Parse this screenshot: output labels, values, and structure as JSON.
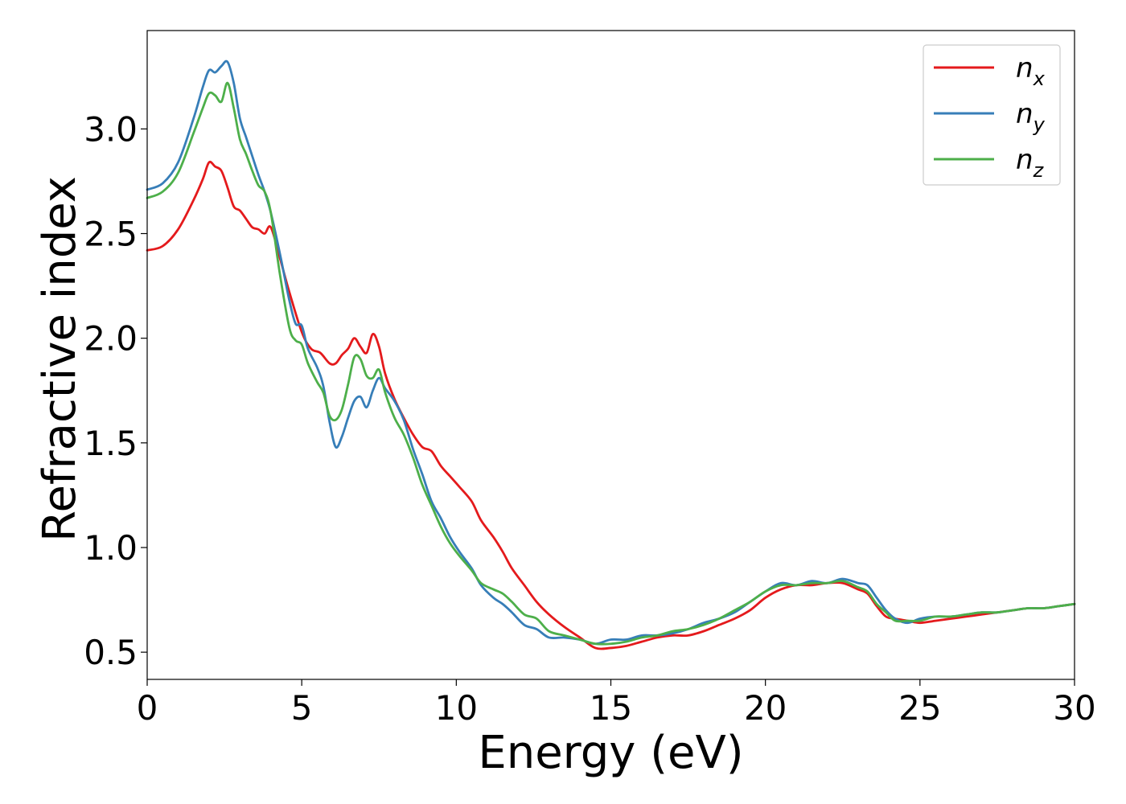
{
  "chart_data": {
    "type": "line",
    "title": "",
    "xlabel": "Energy (eV)",
    "ylabel": "Refractive index",
    "xlim": [
      0,
      30
    ],
    "ylim": [
      0.37,
      3.47
    ],
    "xticks": [
      0,
      5,
      10,
      15,
      20,
      25,
      30
    ],
    "xtick_labels": [
      "0",
      "5",
      "10",
      "15",
      "20",
      "25",
      "30"
    ],
    "yticks": [
      0.5,
      1.0,
      1.5,
      2.0,
      2.5,
      3.0
    ],
    "ytick_labels": [
      "0.5",
      "1.0",
      "1.5",
      "2.0",
      "2.5",
      "3.0"
    ],
    "grid": false,
    "legend_position": "top-right",
    "series": [
      {
        "name": "n_x",
        "label_main": "n",
        "label_sub": "x",
        "color": "#e41a1c",
        "x": [
          0,
          0.5,
          1.0,
          1.5,
          1.8,
          2.0,
          2.2,
          2.4,
          2.6,
          2.8,
          3.0,
          3.2,
          3.4,
          3.6,
          3.8,
          4.0,
          4.3,
          4.6,
          5.0,
          5.3,
          5.6,
          5.9,
          6.1,
          6.3,
          6.5,
          6.7,
          6.9,
          7.1,
          7.3,
          7.5,
          7.7,
          8.0,
          8.3,
          8.6,
          8.9,
          9.2,
          9.5,
          9.8,
          10.1,
          10.5,
          10.8,
          11.2,
          11.5,
          11.8,
          12.2,
          12.6,
          13.0,
          13.5,
          14.0,
          14.5,
          15.0,
          15.5,
          16.0,
          16.5,
          17.0,
          17.5,
          18.0,
          18.5,
          19.0,
          19.5,
          20.0,
          20.5,
          21.0,
          21.5,
          22.0,
          22.5,
          23.0,
          23.3,
          23.6,
          23.9,
          24.2,
          24.6,
          25.0,
          25.5,
          26.0,
          26.5,
          27.0,
          27.5,
          28.0,
          28.5,
          29.0,
          29.5,
          30.0
        ],
        "values": [
          2.42,
          2.44,
          2.52,
          2.66,
          2.76,
          2.84,
          2.82,
          2.8,
          2.72,
          2.63,
          2.61,
          2.57,
          2.53,
          2.52,
          2.5,
          2.53,
          2.38,
          2.22,
          2.03,
          1.95,
          1.93,
          1.88,
          1.88,
          1.92,
          1.95,
          2.0,
          1.96,
          1.93,
          2.02,
          1.96,
          1.83,
          1.71,
          1.62,
          1.54,
          1.48,
          1.46,
          1.39,
          1.34,
          1.29,
          1.22,
          1.13,
          1.05,
          0.98,
          0.9,
          0.82,
          0.74,
          0.68,
          0.62,
          0.57,
          0.52,
          0.52,
          0.53,
          0.55,
          0.57,
          0.58,
          0.58,
          0.6,
          0.63,
          0.66,
          0.7,
          0.76,
          0.8,
          0.82,
          0.82,
          0.83,
          0.83,
          0.8,
          0.78,
          0.72,
          0.67,
          0.66,
          0.65,
          0.64,
          0.65,
          0.66,
          0.67,
          0.68,
          0.69,
          0.7,
          0.71,
          0.71,
          0.72,
          0.73
        ]
      },
      {
        "name": "n_y",
        "label_main": "n",
        "label_sub": "y",
        "color": "#377eb8",
        "x": [
          0,
          0.5,
          1.0,
          1.5,
          1.8,
          2.0,
          2.2,
          2.4,
          2.6,
          2.8,
          3.0,
          3.2,
          3.4,
          3.6,
          3.8,
          4.0,
          4.3,
          4.6,
          4.8,
          5.0,
          5.2,
          5.5,
          5.7,
          5.9,
          6.1,
          6.3,
          6.5,
          6.7,
          6.9,
          7.1,
          7.3,
          7.5,
          7.7,
          8.0,
          8.3,
          8.6,
          8.9,
          9.2,
          9.5,
          9.8,
          10.1,
          10.5,
          10.8,
          11.2,
          11.5,
          11.8,
          12.2,
          12.6,
          13.0,
          13.5,
          14.0,
          14.5,
          15.0,
          15.5,
          16.0,
          16.5,
          17.0,
          17.5,
          18.0,
          18.5,
          19.0,
          19.5,
          20.0,
          20.5,
          21.0,
          21.5,
          22.0,
          22.5,
          23.0,
          23.3,
          23.6,
          23.9,
          24.2,
          24.6,
          25.0,
          25.5,
          26.0,
          26.5,
          27.0,
          27.5,
          28.0,
          28.5,
          29.0,
          29.5,
          30.0
        ],
        "values": [
          2.71,
          2.74,
          2.84,
          3.05,
          3.2,
          3.28,
          3.27,
          3.3,
          3.32,
          3.22,
          3.05,
          2.96,
          2.87,
          2.78,
          2.7,
          2.6,
          2.4,
          2.18,
          2.07,
          2.06,
          1.95,
          1.86,
          1.77,
          1.6,
          1.48,
          1.53,
          1.62,
          1.7,
          1.72,
          1.67,
          1.75,
          1.81,
          1.76,
          1.7,
          1.61,
          1.47,
          1.35,
          1.22,
          1.14,
          1.05,
          0.98,
          0.9,
          0.82,
          0.76,
          0.73,
          0.69,
          0.63,
          0.61,
          0.57,
          0.57,
          0.56,
          0.54,
          0.56,
          0.56,
          0.58,
          0.58,
          0.59,
          0.61,
          0.64,
          0.66,
          0.69,
          0.74,
          0.79,
          0.83,
          0.82,
          0.84,
          0.83,
          0.85,
          0.83,
          0.82,
          0.76,
          0.7,
          0.66,
          0.64,
          0.66,
          0.67,
          0.67,
          0.68,
          0.69,
          0.69,
          0.7,
          0.71,
          0.71,
          0.72,
          0.73
        ]
      },
      {
        "name": "n_z",
        "label_main": "n",
        "label_sub": "z",
        "color": "#4daf4a",
        "x": [
          0,
          0.5,
          1.0,
          1.5,
          1.8,
          2.0,
          2.2,
          2.4,
          2.6,
          2.8,
          3.0,
          3.2,
          3.4,
          3.6,
          3.8,
          4.0,
          4.3,
          4.6,
          4.8,
          5.0,
          5.2,
          5.5,
          5.7,
          5.9,
          6.1,
          6.3,
          6.5,
          6.7,
          6.9,
          7.1,
          7.3,
          7.5,
          7.7,
          8.0,
          8.3,
          8.6,
          8.9,
          9.2,
          9.5,
          9.8,
          10.1,
          10.5,
          10.8,
          11.2,
          11.5,
          11.8,
          12.2,
          12.6,
          13.0,
          13.5,
          14.0,
          14.5,
          15.0,
          15.5,
          16.0,
          16.5,
          17.0,
          17.5,
          18.0,
          18.5,
          19.0,
          19.5,
          20.0,
          20.5,
          21.0,
          21.5,
          22.0,
          22.5,
          23.0,
          23.3,
          23.6,
          23.9,
          24.2,
          24.6,
          25.0,
          25.5,
          26.0,
          26.5,
          27.0,
          27.5,
          28.0,
          28.5,
          29.0,
          29.5,
          30.0
        ],
        "values": [
          2.67,
          2.7,
          2.79,
          2.98,
          3.1,
          3.17,
          3.16,
          3.13,
          3.22,
          3.1,
          2.95,
          2.88,
          2.8,
          2.73,
          2.7,
          2.6,
          2.3,
          2.05,
          1.99,
          1.97,
          1.88,
          1.79,
          1.74,
          1.63,
          1.61,
          1.66,
          1.78,
          1.91,
          1.9,
          1.82,
          1.81,
          1.85,
          1.74,
          1.62,
          1.54,
          1.43,
          1.3,
          1.2,
          1.1,
          1.02,
          0.96,
          0.89,
          0.83,
          0.8,
          0.78,
          0.74,
          0.68,
          0.66,
          0.6,
          0.58,
          0.56,
          0.54,
          0.54,
          0.55,
          0.57,
          0.58,
          0.6,
          0.61,
          0.63,
          0.66,
          0.7,
          0.74,
          0.79,
          0.82,
          0.82,
          0.83,
          0.83,
          0.84,
          0.81,
          0.79,
          0.73,
          0.69,
          0.65,
          0.65,
          0.65,
          0.67,
          0.67,
          0.68,
          0.69,
          0.69,
          0.7,
          0.71,
          0.71,
          0.72,
          0.73
        ]
      }
    ]
  }
}
